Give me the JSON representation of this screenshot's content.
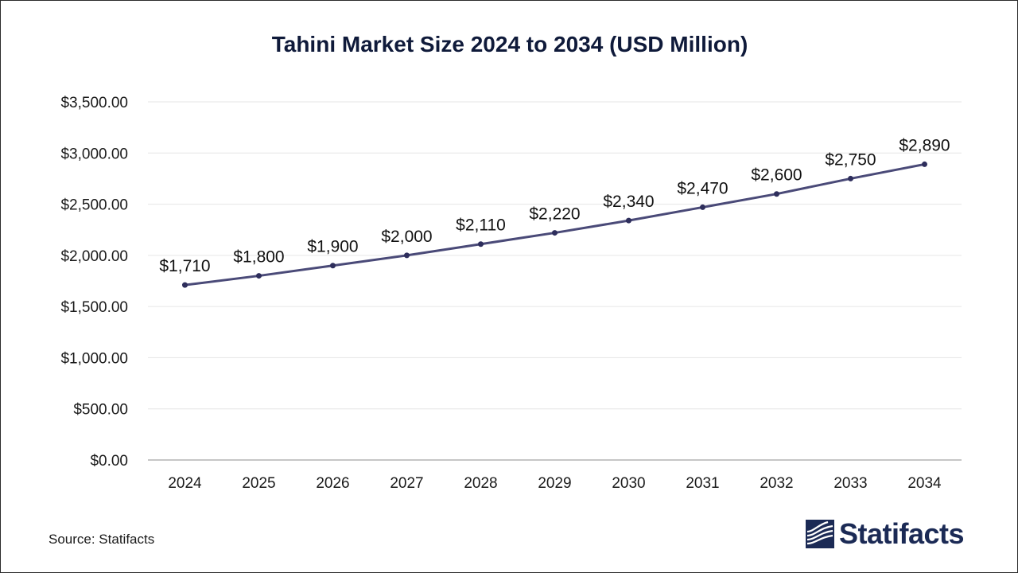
{
  "chart_data": {
    "type": "line",
    "title": "Tahini Market Size 2024 to 2034 (USD Million)",
    "xlabel": "",
    "ylabel": "",
    "categories": [
      "2024",
      "2025",
      "2026",
      "2027",
      "2028",
      "2029",
      "2030",
      "2031",
      "2032",
      "2033",
      "2034"
    ],
    "series": [
      {
        "name": "Tahini Market Size",
        "values": [
          1710,
          1800,
          1900,
          2000,
          2110,
          2220,
          2340,
          2470,
          2600,
          2750,
          2890
        ],
        "labels": [
          "$1,710",
          "$1,800",
          "$1,900",
          "$2,000",
          "$2,110",
          "$2,220",
          "$2,340",
          "$2,470",
          "$2,600",
          "$2,750",
          "$2,890"
        ]
      }
    ],
    "ylim": [
      0,
      3500
    ],
    "yticks": [
      0,
      500,
      1000,
      1500,
      2000,
      2500,
      3000,
      3500
    ],
    "ytick_labels": [
      "$0.00",
      "$500.00",
      "$1,000.00",
      "$1,500.00",
      "$2,000.00",
      "$2,500.00",
      "$3,000.00",
      "$3,500.00"
    ],
    "grid": true,
    "legend": "none"
  },
  "colors": {
    "line": "#4a4a78",
    "marker": "#2e2e5c",
    "title": "#0f1a3a",
    "brand": "#1b2a55"
  },
  "footer": {
    "source": "Source: Statifacts",
    "brand_name": "Statifacts",
    "brand_icon": "statifacts-logo-icon"
  }
}
